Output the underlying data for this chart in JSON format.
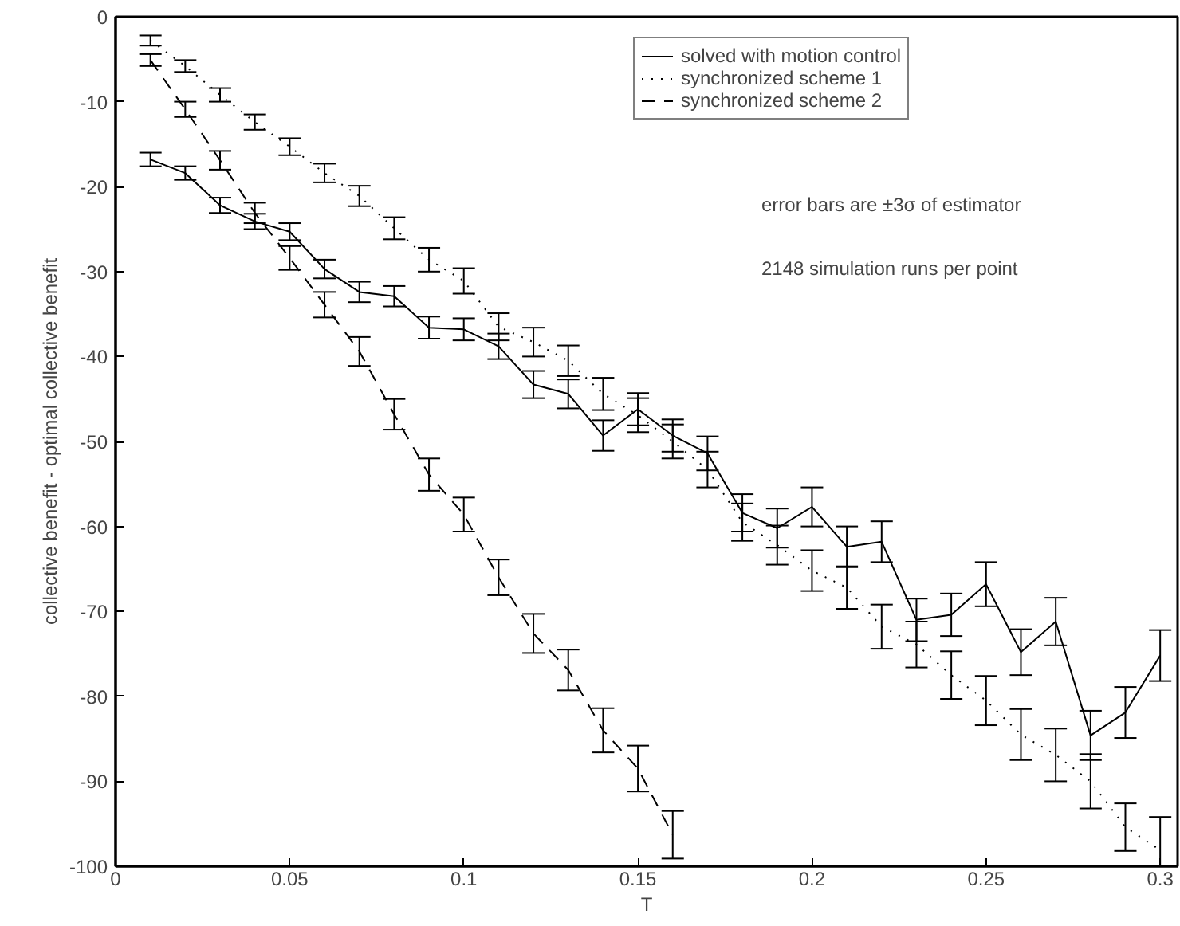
{
  "chart_data": {
    "type": "line",
    "xlabel": "T",
    "ylabel": "collective benefit - optimal collective benefit",
    "x": [
      0.01,
      0.02,
      0.03,
      0.04,
      0.05,
      0.06,
      0.07,
      0.08,
      0.09,
      0.1,
      0.11,
      0.12,
      0.13,
      0.14,
      0.15,
      0.16,
      0.17,
      0.18,
      0.19,
      0.2,
      0.21,
      0.22,
      0.23,
      0.24,
      0.25,
      0.26,
      0.27,
      0.28,
      0.29,
      0.3
    ],
    "series": [
      {
        "name": "solved with motion control",
        "color": "#000000",
        "line_style": "solid",
        "values": [
          -16.8,
          -18.4,
          -22.2,
          -24.1,
          -25.3,
          -29.7,
          -32.4,
          -32.9,
          -36.6,
          -36.8,
          -38.8,
          -43.3,
          -44.4,
          -49.3,
          -46.2,
          -49.3,
          -51.4,
          -58.4,
          -60.2,
          -57.7,
          -62.4,
          -61.8,
          -71.0,
          -70.4,
          -66.8,
          -74.8,
          -71.2,
          -84.6,
          -81.9,
          -75.2
        ],
        "errors": [
          0.8,
          0.8,
          0.9,
          0.9,
          1.0,
          1.1,
          1.2,
          1.2,
          1.3,
          1.3,
          1.5,
          1.6,
          1.7,
          1.8,
          1.9,
          1.9,
          2.0,
          2.2,
          2.3,
          2.3,
          2.4,
          2.4,
          2.5,
          2.5,
          2.6,
          2.7,
          2.8,
          2.9,
          3.0,
          3.0
        ]
      },
      {
        "name": "synchronized scheme 1",
        "color": "#000000",
        "line_style": "dotted",
        "values": [
          -2.8,
          -5.8,
          -9.2,
          -12.4,
          -15.3,
          -18.4,
          -21.1,
          -24.9,
          -28.6,
          -31.1,
          -36.5,
          -38.3,
          -40.5,
          -44.4,
          -46.9,
          -50.0,
          -53.3,
          -59.5,
          -62.2,
          -65.2,
          -67.2,
          -71.8,
          -73.9,
          -77.5,
          -80.5,
          -84.5,
          -86.9,
          -90.0,
          -95.4,
          -98.1
        ],
        "errors": [
          0.6,
          0.7,
          0.8,
          0.9,
          1.0,
          1.1,
          1.2,
          1.3,
          1.4,
          1.5,
          1.6,
          1.7,
          1.8,
          1.9,
          2.0,
          2.0,
          2.1,
          2.2,
          2.3,
          2.4,
          2.5,
          2.6,
          2.7,
          2.8,
          2.9,
          3.0,
          3.1,
          3.2,
          2.8,
          [
            -100,
            -94.2
          ]
        ]
      },
      {
        "name": "synchronized scheme 2",
        "color": "#000000",
        "line_style": "dashed",
        "values": [
          -5.1,
          -10.9,
          -16.9,
          -23.1,
          -28.4,
          -33.9,
          -39.4,
          -46.8,
          -53.9,
          -58.6,
          -66.0,
          -72.6,
          -76.9,
          -84.0,
          -88.5,
          -96.3,
          null,
          null,
          null,
          null,
          null,
          null,
          null,
          null,
          null,
          null,
          null,
          null,
          null,
          null
        ],
        "errors": [
          0.7,
          0.9,
          1.1,
          1.2,
          1.4,
          1.5,
          1.7,
          1.8,
          1.9,
          2.0,
          2.1,
          2.3,
          2.4,
          2.6,
          2.7,
          2.8,
          null,
          null,
          null,
          null,
          null,
          null,
          null,
          null,
          null,
          null,
          null,
          null,
          null,
          null
        ]
      }
    ],
    "xlim": [
      0,
      0.305
    ],
    "ylim": [
      -100,
      0
    ],
    "xticks": [
      0,
      0.05,
      0.1,
      0.15,
      0.2,
      0.25,
      0.3
    ],
    "yticks": [
      -100,
      -90,
      -80,
      -70,
      -60,
      -50,
      -40,
      -30,
      -20,
      -10,
      0
    ],
    "grid": false,
    "legend": "top right",
    "marker": "none",
    "annotations": [
      "error bars are ±3σ of estimator",
      "2148 simulation runs per point"
    ]
  }
}
